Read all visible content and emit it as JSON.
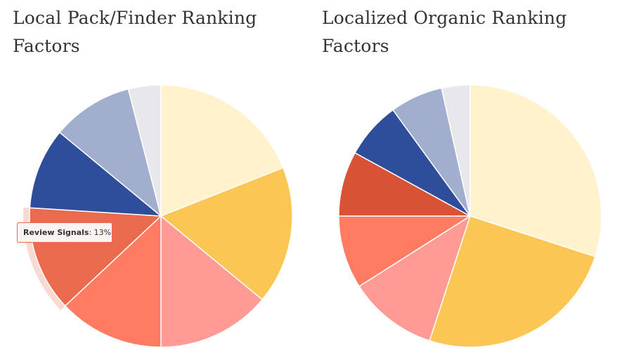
{
  "chart_data": [
    {
      "type": "pie",
      "title": "Local Pack/Finder Ranking Factors",
      "slices": [
        {
          "value": 19,
          "color": "#FFF2CC"
        },
        {
          "value": 17,
          "color": "#FBC654"
        },
        {
          "value": 14,
          "color": "#FF9A94"
        },
        {
          "value": 13,
          "color": "#FF7B62"
        },
        {
          "value": 13,
          "label": "Review Signals",
          "color": "#E96A4D"
        },
        {
          "value": 10,
          "color": "#2E4D9A"
        },
        {
          "value": 10,
          "color": "#A1AECE"
        },
        {
          "value": 4,
          "color": "#E8E8EC"
        }
      ],
      "tooltip": {
        "label": "Review Signals",
        "value_text": "13%"
      }
    },
    {
      "type": "pie",
      "title": "Localized Organic Ranking Factors",
      "slices": [
        {
          "value": 30,
          "color": "#FFF2CC"
        },
        {
          "value": 25,
          "color": "#FBC654"
        },
        {
          "value": 11,
          "color": "#FF9A94"
        },
        {
          "value": 9,
          "color": "#FF7B62"
        },
        {
          "value": 8,
          "color": "#D85234"
        },
        {
          "value": 7,
          "color": "#2E4D9A"
        },
        {
          "value": 6.5,
          "color": "#A1AECE"
        },
        {
          "value": 3.5,
          "color": "#E8E8EC"
        }
      ]
    }
  ]
}
